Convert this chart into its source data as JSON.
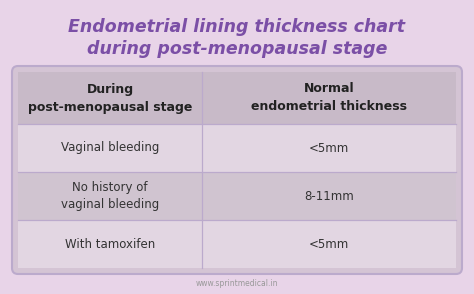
{
  "title_line1": "Endometrial lining thickness chart",
  "title_line2": "during post-menopausal stage",
  "title_color": "#7B4FA6",
  "background_color": "#E8D4E8",
  "table_outer_bg": "#D4C4D4",
  "header_bg": "#C8BAC8",
  "row_alt1_bg": "#E2D6E2",
  "row_alt2_bg": "#D0C4D0",
  "col1_header": "During\npost-menopausal stage",
  "col2_header": "Normal\nendometrial thickness",
  "rows": [
    [
      "Vaginal bleeding",
      "<5mm"
    ],
    [
      "No history of\nvaginal bleeding",
      "8-11mm"
    ],
    [
      "With tamoxifen",
      "<5mm"
    ]
  ],
  "footer": "www.sprintmedical.in",
  "header_text_color": "#222222",
  "row_text_color": "#333333",
  "footer_color": "#999999",
  "divider_color": "#BBAACC",
  "border_color": "#BBAACC"
}
